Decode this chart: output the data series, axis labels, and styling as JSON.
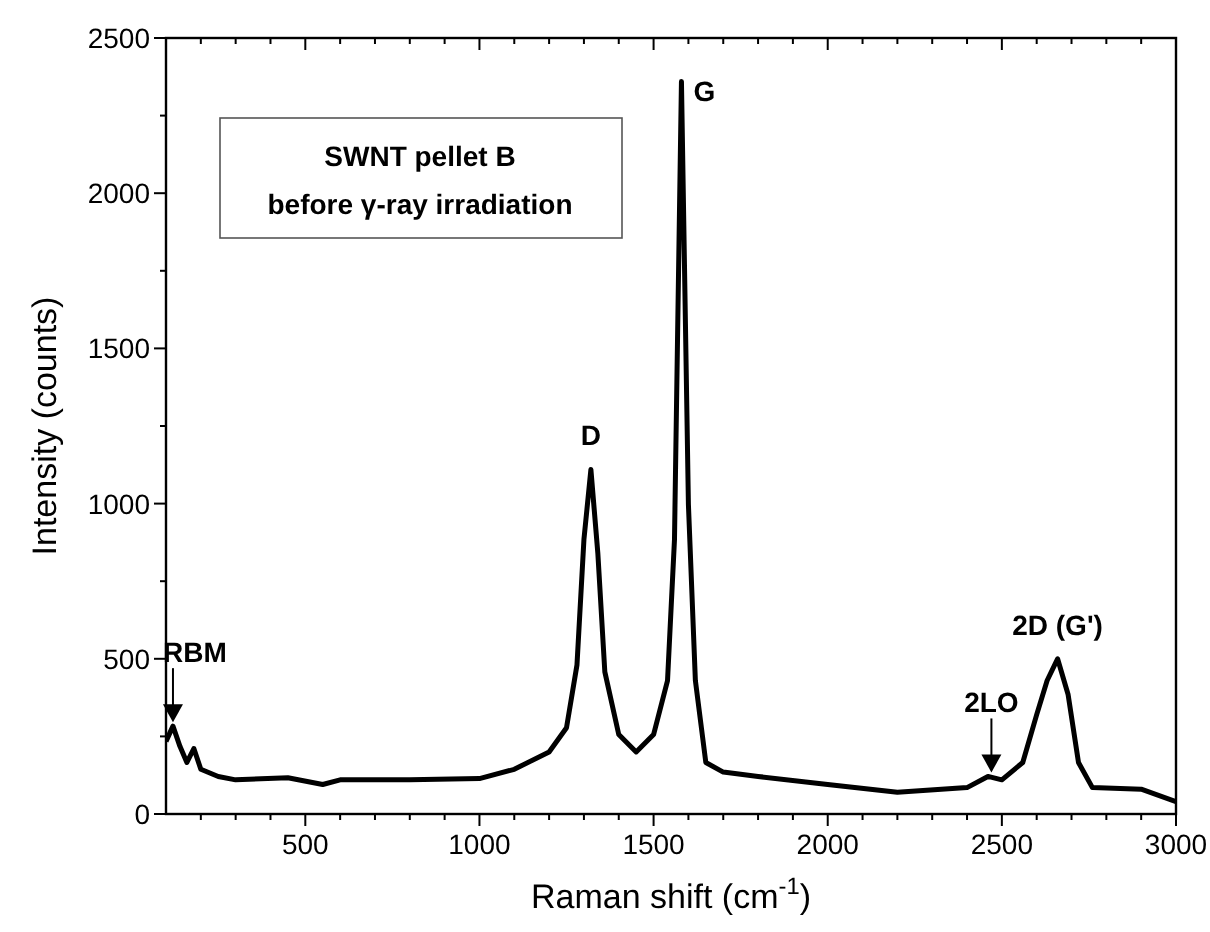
{
  "chart_data": {
    "type": "line",
    "xlabel": "Raman shift (cm$^{-1}$)",
    "ylabel": "Intensity (counts)",
    "xlim": [
      100,
      3000
    ],
    "ylim": [
      0,
      2500
    ],
    "xticks": [
      {
        "value": 200,
        "label": null
      },
      {
        "value": 300,
        "label": null
      },
      {
        "value": 400,
        "label": null
      },
      500,
      {
        "value": 600,
        "label": null
      },
      {
        "value": 700,
        "label": null
      },
      {
        "value": 800,
        "label": null
      },
      {
        "value": 900,
        "label": null
      },
      1000,
      {
        "value": 1100,
        "label": null
      },
      {
        "value": 1200,
        "label": null
      },
      {
        "value": 1300,
        "label": null
      },
      {
        "value": 1400,
        "label": null
      },
      1500,
      {
        "value": 1600,
        "label": null
      },
      {
        "value": 1700,
        "label": null
      },
      {
        "value": 1800,
        "label": null
      },
      {
        "value": 1900,
        "label": null
      },
      2000,
      {
        "value": 2100,
        "label": null
      },
      {
        "value": 2200,
        "label": null
      },
      {
        "value": 2300,
        "label": null
      },
      {
        "value": 2400,
        "label": null
      },
      2500,
      {
        "value": 2600,
        "label": null
      },
      {
        "value": 2700,
        "label": null
      },
      {
        "value": 2800,
        "label": null
      },
      {
        "value": 2900,
        "label": null
      },
      3000
    ],
    "yticks": [
      0,
      {
        "value": 250,
        "label": null
      },
      500,
      {
        "value": 750,
        "label": null
      },
      1000,
      {
        "value": 1250,
        "label": null
      },
      1500,
      {
        "value": 1750,
        "label": null
      },
      2000,
      {
        "value": 2250,
        "label": null
      },
      2500
    ],
    "grid": false,
    "marker": "none",
    "line_style": "solid",
    "series": [
      {
        "color": "#000000",
        "x": [
          100,
          120,
          140,
          160,
          180,
          200,
          250,
          300,
          450,
          550,
          600,
          800,
          1000,
          1100,
          1200,
          1250,
          1280,
          1300,
          1320,
          1340,
          1360,
          1400,
          1450,
          1500,
          1540,
          1560,
          1580,
          1600,
          1620,
          1650,
          1700,
          1800,
          2000,
          2200,
          2400,
          2460,
          2500,
          2560,
          2600,
          2630,
          2660,
          2690,
          2720,
          2760,
          2900,
          3000
        ],
        "values": [
          234,
          283,
          218,
          166,
          211,
          144,
          121,
          110,
          117,
          95,
          110,
          110,
          114,
          144,
          200,
          278,
          480,
          884,
          1110,
          839,
          458,
          256,
          200,
          256,
          430,
          884,
          2360,
          997,
          430,
          166,
          135,
          121,
          95,
          70,
          85,
          121,
          110,
          166,
          320,
          430,
          500,
          386,
          166,
          85,
          80,
          40
        ]
      }
    ],
    "annotations": [
      {
        "text": "G",
        "x": 1580,
        "y": 2360
      },
      {
        "text": "D",
        "x": 1320,
        "y": 1110
      },
      {
        "text": "RBM",
        "x": 120,
        "y": 283
      },
      {
        "text": "2LO",
        "x": 2470,
        "y": 121
      },
      {
        "text": "2D (G')",
        "x": 2660,
        "y": 500
      },
      "SWNT pellet B",
      "before γ-ray irradiation"
    ]
  }
}
